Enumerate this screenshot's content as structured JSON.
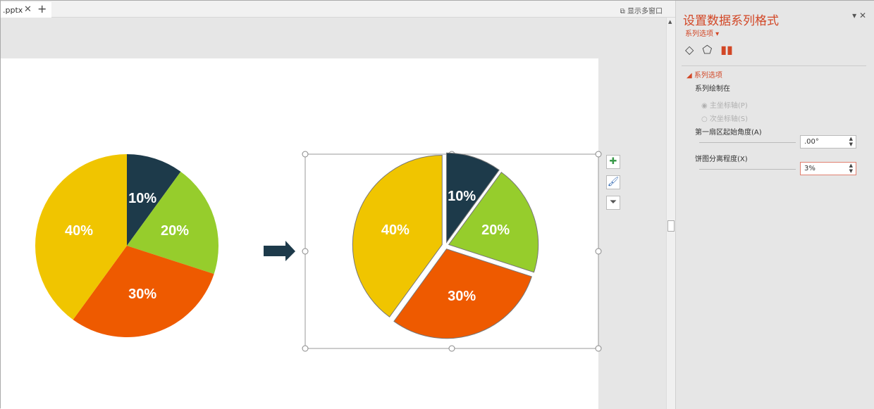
{
  "tabbar": {
    "tab_label": ".pptx",
    "close": "✕",
    "new_tab": "+",
    "multi_window": "显示多窗口"
  },
  "panel": {
    "title": "设置数据系列格式",
    "subtitle": "系列选项 ▾",
    "close": "✕",
    "menu": "▾",
    "icons": [
      "fill-bucket-icon",
      "pentagon-icon",
      "bar-chart-icon"
    ],
    "section": "系列选项",
    "plot_on": "系列绘制在",
    "primary_axis": "主坐标轴(P)",
    "secondary_axis": "次坐标轴(S)",
    "first_angle_label": "第一扇区起始角度(A)",
    "first_angle_value": ".00°",
    "explosion_label": "饼图分离程度(X)",
    "explosion_value": "3%"
  },
  "colors": {
    "accent": "#d24726",
    "slice_1": "#1d3a4a",
    "slice_2": "#96cd2c",
    "slice_3": "#ee5a00",
    "slice_4": "#f0c500"
  },
  "chart_data": [
    {
      "type": "pie",
      "values": [
        10,
        20,
        30,
        40
      ],
      "labels": [
        "10%",
        "20%",
        "30%",
        "40%"
      ],
      "explosion": 0
    },
    {
      "type": "pie",
      "values": [
        10,
        20,
        30,
        40
      ],
      "labels": [
        "10%",
        "20%",
        "30%",
        "40%"
      ],
      "explosion": 3,
      "selected": true
    }
  ]
}
